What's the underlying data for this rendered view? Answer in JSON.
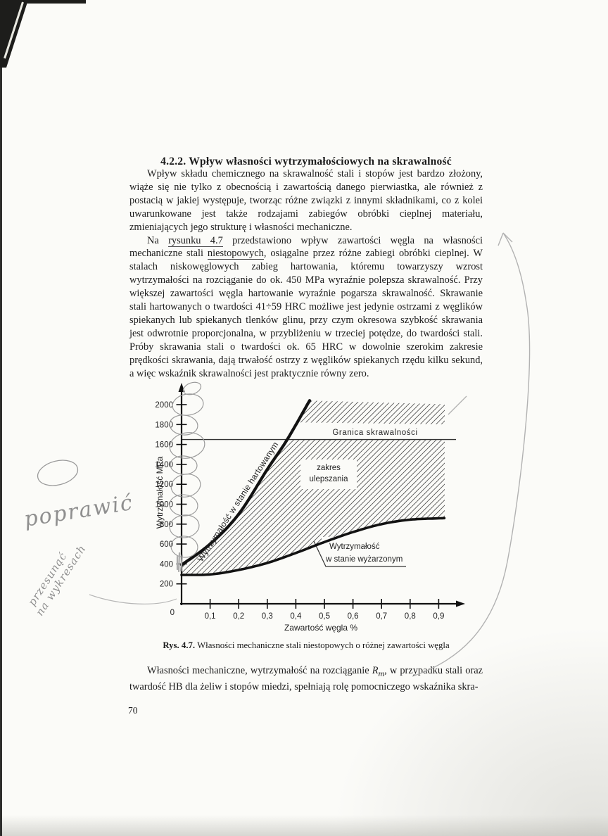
{
  "page": {
    "number": "70"
  },
  "heading": "4.2.2. Wpływ własności wytrzymałościowych na skrawalność",
  "paragraphs": [
    {
      "segments": [
        {
          "t": "Wpływ składu chemicznego na skrawalność stali i stopów jest bardzo złożony, wiąże się nie tylko z obecnością i zawartością danego pierwiastka, ale również z postacią w jakiej występuje, tworząc różne związki z innymi składnikami, co z kolei uwarunkowane jest także rodzajami zabiegów obróbki cieplnej materiału, zmieniających jego strukturę i własności mechaniczne."
        }
      ]
    },
    {
      "segments": [
        {
          "t": "Na "
        },
        {
          "t": "rysunku 4.7",
          "u": true
        },
        {
          "t": " przedstawiono wpływ zawartości węgla na własności mechaniczne stali "
        },
        {
          "t": "niestopowych",
          "u": true
        },
        {
          "t": ", osiągalne przez różne zabiegi obróbki cieplnej. W stalach niskowęglowych zabieg hartowania, któremu towarzyszy wzrost wytrzymałości na rozciąganie do ok. 450 MPa wyraźnie polepsza skrawalność. Przy większej zawartości węgla hartowanie wyraźnie pogarsza skrawalność. Skrawanie stali hartowanych o twardości 41÷59 HRC możliwe jest jedynie ostrzami z węglików spiekanych lub spiekanych tlenków glinu, przy czym okresowa szybkość skrawania jest odwrotnie proporcjonalna, w przybliżeniu w trzeciej potędze, do twardości stali. Próby skrawania stali o twardości ok. 65 HRC w dowolnie szerokim zakresie prędkości skrawania, dają trwałość ostrzy z węglików spiekanych rzędu kilku sekund, a więc wskaźnik skrawalności jest praktycznie równy zero."
        }
      ]
    }
  ],
  "closing_paragraph": {
    "segments": [
      {
        "t": "Własności mechaniczne, wytrzymałość na rozciąganie "
      },
      {
        "t": "R",
        "italic": true,
        "sub": "m"
      },
      {
        "t": ", w przypadku stali oraz twardość HB dla żeliw i stopów miedzi, spełniają rolę pomocniczego wskaźnika skra-"
      }
    ]
  },
  "caption": {
    "label": "Rys. 4.7.",
    "text": " Własności mechaniczne stali niestopowych o różnej zawartości węgla"
  },
  "chart_data": {
    "type": "line",
    "title": "",
    "xlabel": "Zawartość węgla %",
    "ylabel": "Wytrzymałość MPa",
    "xlim": [
      0,
      0.97
    ],
    "ylim": [
      0,
      2200
    ],
    "grid": false,
    "legend_position": "none",
    "origin_label": "0",
    "xticks": {
      "values": [
        0.1,
        0.2,
        0.3,
        0.4,
        0.5,
        0.6,
        0.7,
        0.8,
        0.9
      ],
      "labels": [
        "0,1",
        "0,2",
        "0,3",
        "0,4",
        "0,5",
        "0,6",
        "0,7",
        "0,8",
        "0,9"
      ]
    },
    "yticks": {
      "values": [
        200,
        400,
        600,
        800,
        1000,
        1200,
        1400,
        1600,
        1800,
        2000
      ],
      "labels": [
        "200",
        "400",
        "600",
        "800",
        "1000",
        "1200",
        "1400",
        "1600",
        "1800",
        "2000"
      ]
    },
    "series": [
      {
        "name": "Wytrzymałość w stanie hartowanym",
        "x": [
          0,
          0.1,
          0.2,
          0.3,
          0.37,
          0.45
        ],
        "y": [
          390,
          600,
          900,
          1350,
          1650,
          2050
        ]
      },
      {
        "name": "Wytrzymałość w stanie wyżarzonym",
        "x": [
          0,
          0.1,
          0.2,
          0.3,
          0.4,
          0.5,
          0.6,
          0.7,
          0.8,
          0.9,
          0.92
        ],
        "y": [
          290,
          295,
          340,
          410,
          510,
          620,
          720,
          800,
          845,
          858,
          860
        ]
      }
    ],
    "cutting_limit": {
      "label": "Granica skrawalności",
      "value": 1650
    },
    "region_label": {
      "lines": [
        "zakres",
        "ulepszania"
      ]
    },
    "annealed_label": {
      "lines": [
        "Wytrzymałość",
        "w stanie wyżarzonym"
      ]
    },
    "hatch_region": "machinable range between annealed and hardened strength curves, capped by cutting limit"
  },
  "annotations": {
    "handwriting": [
      {
        "text": "poprawić"
      },
      {
        "text": "przesunąć"
      },
      {
        "text": "na wykresach"
      }
    ],
    "marks": [
      "oval doodle in left margin",
      "circles around y-axis tick labels",
      "long curved arrow in right margin pointing up",
      "connector stroke from margin note to chart origin"
    ]
  }
}
